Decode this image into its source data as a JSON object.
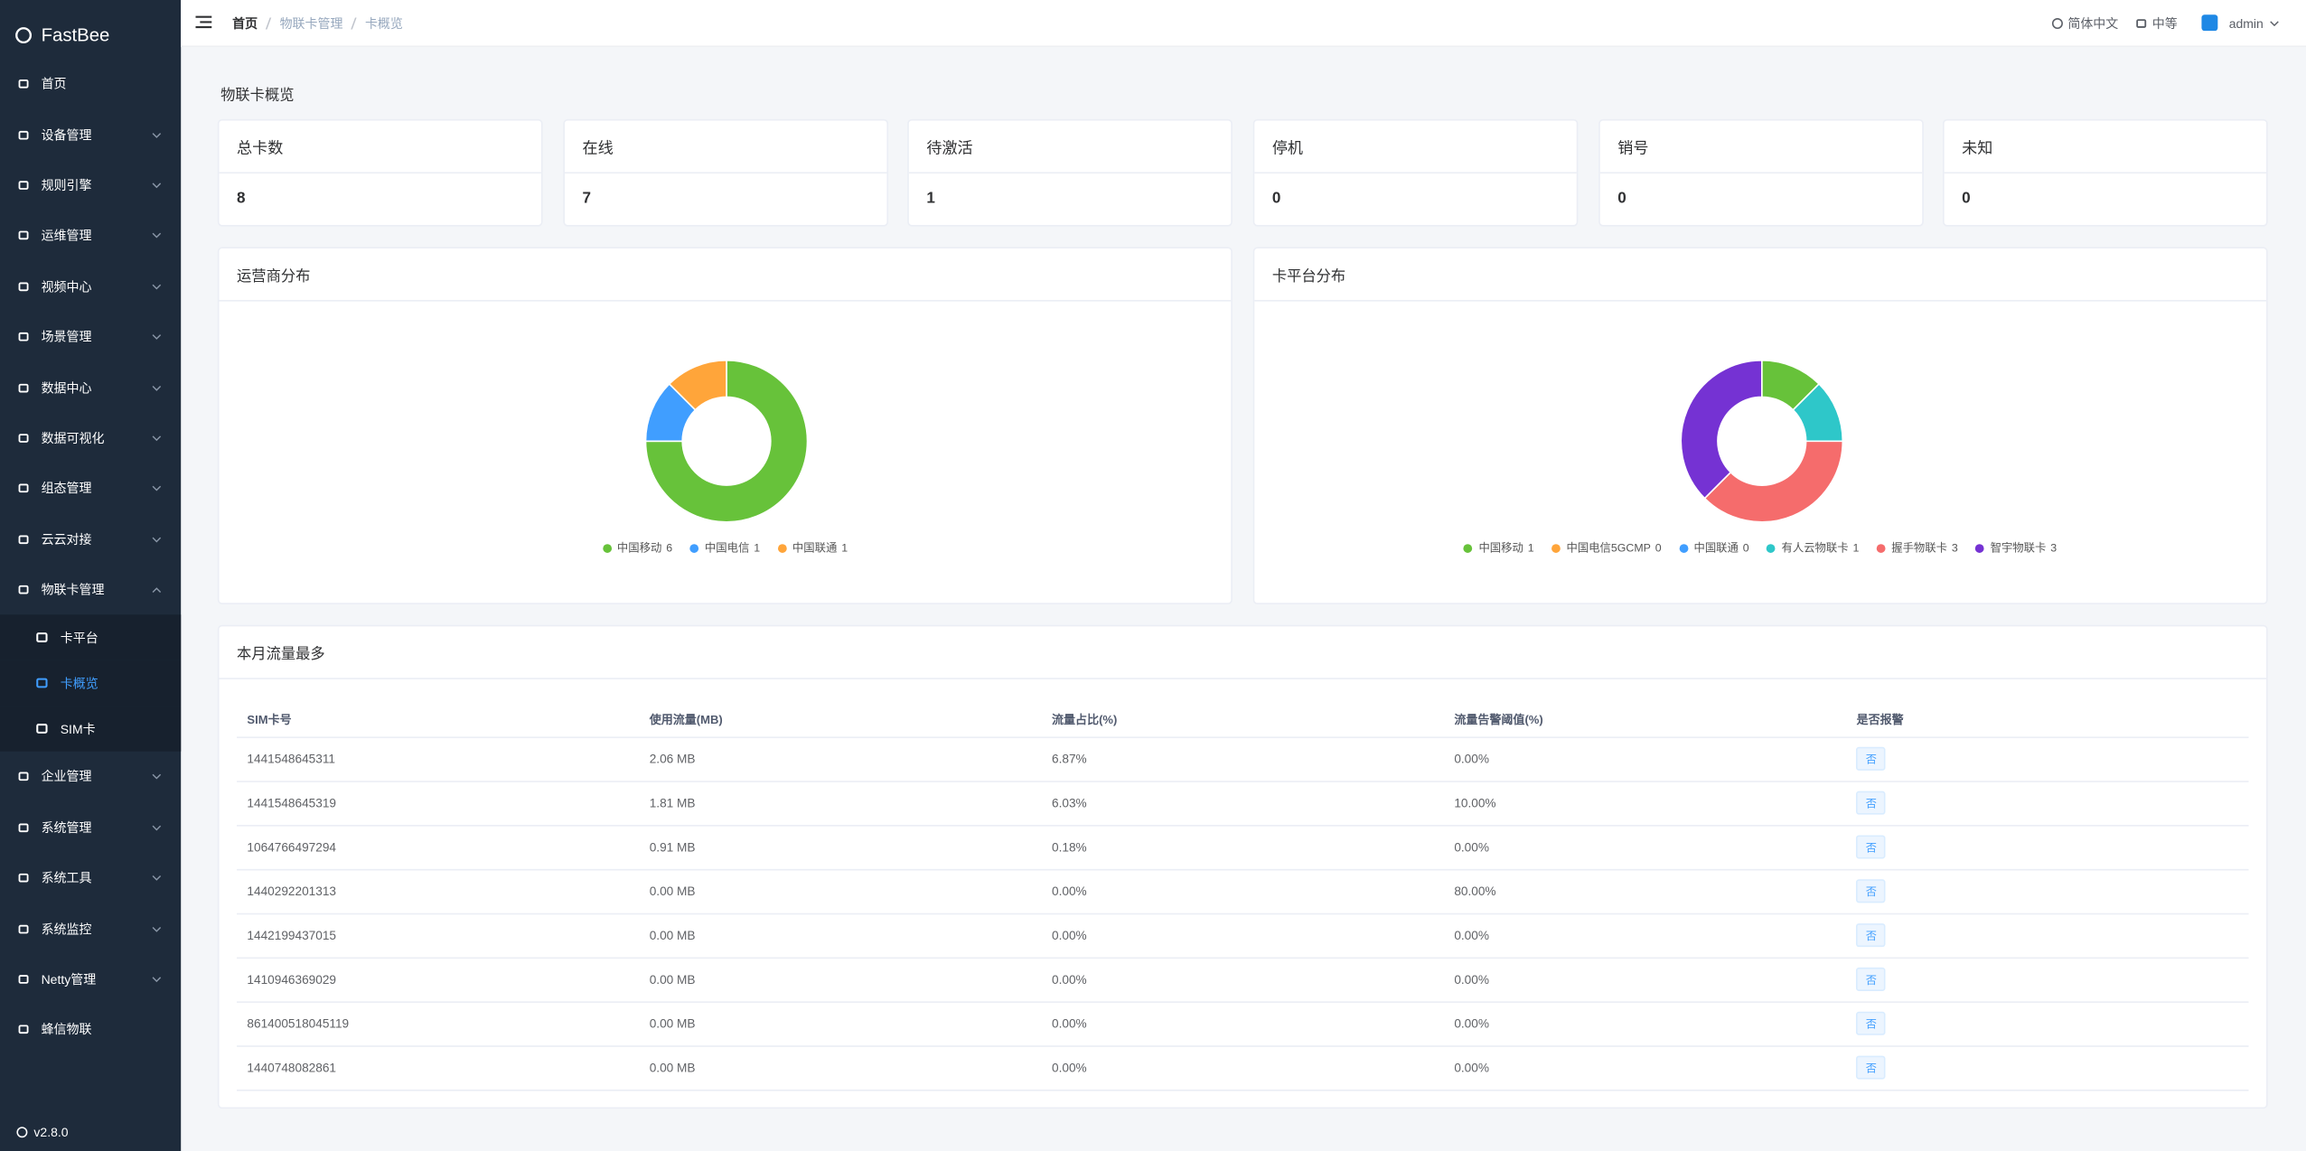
{
  "sidebar": {
    "logo": "FastBee",
    "items": [
      {
        "label": "首页"
      },
      {
        "label": "设备管理",
        "expandable": true
      },
      {
        "label": "规则引擎",
        "expandable": true
      },
      {
        "label": "运维管理",
        "expandable": true
      },
      {
        "label": "视频中心",
        "expandable": true
      },
      {
        "label": "场景管理",
        "expandable": true
      },
      {
        "label": "数据中心",
        "expandable": true
      },
      {
        "label": "数据可视化",
        "expandable": true
      },
      {
        "label": "组态管理",
        "expandable": true
      },
      {
        "label": "云云对接",
        "expandable": true
      },
      {
        "label": "物联卡管理",
        "expandable": true,
        "children": [
          {
            "label": "卡平台"
          },
          {
            "label": "卡概览",
            "active": true
          },
          {
            "label": "SIM卡"
          }
        ]
      },
      {
        "label": "企业管理",
        "expandable": true
      },
      {
        "label": "系统管理",
        "expandable": true
      },
      {
        "label": "系统工具",
        "expandable": true
      },
      {
        "label": "系统监控",
        "expandable": true
      },
      {
        "label": "Netty管理",
        "expandable": true
      },
      {
        "label": "蜂信物联"
      }
    ],
    "version": "v2.8.0"
  },
  "header": {
    "breadcrumb": [
      "首页",
      "物联卡管理",
      "卡概览"
    ],
    "language": "简体中文",
    "size": "中等",
    "user": "admin"
  },
  "overview": {
    "title": "物联卡概览",
    "cards": [
      {
        "label": "总卡数",
        "value": 8
      },
      {
        "label": "在线",
        "value": 7
      },
      {
        "label": "待激活",
        "value": 1
      },
      {
        "label": "停机",
        "value": 0
      },
      {
        "label": "销号",
        "value": 0
      },
      {
        "label": "未知",
        "value": 0
      }
    ]
  },
  "charts": [
    {
      "type": "pie",
      "title": "运营商分布",
      "series": [
        {
          "name": "中国移动",
          "value": 6,
          "color": "#67c23a"
        },
        {
          "name": "中国电信",
          "value": 1,
          "color": "#409eff"
        },
        {
          "name": "中国联通",
          "value": 1,
          "color": "#ffa53a"
        }
      ]
    },
    {
      "type": "pie",
      "title": "卡平台分布",
      "series": [
        {
          "name": "中国移动",
          "value": 1,
          "color": "#67c23a"
        },
        {
          "name": "中国电信5GCMP",
          "value": 0,
          "color": "#ffa53a"
        },
        {
          "name": "中国联通",
          "value": 0,
          "color": "#409eff"
        },
        {
          "name": "有人云物联卡",
          "value": 1,
          "color": "#2ec7c9"
        },
        {
          "name": "握手物联卡",
          "value": 3,
          "color": "#f56c6c"
        },
        {
          "name": "智宇物联卡",
          "value": 3,
          "color": "#7532d3"
        }
      ]
    }
  ],
  "table": {
    "title": "本月流量最多",
    "columns": [
      "SIM卡号",
      "使用流量(MB)",
      "流量占比(%)",
      "流量告警阈值(%)",
      "是否报警"
    ],
    "rows": [
      [
        "1441548645311",
        "2.06 MB",
        "6.87%",
        "0.00%",
        "否"
      ],
      [
        "1441548645319",
        "1.81 MB",
        "6.03%",
        "10.00%",
        "否"
      ],
      [
        "1064766497294",
        "0.91 MB",
        "0.18%",
        "0.00%",
        "否"
      ],
      [
        "1440292201313",
        "0.00 MB",
        "0.00%",
        "80.00%",
        "否"
      ],
      [
        "1442199437015",
        "0.00 MB",
        "0.00%",
        "0.00%",
        "否"
      ],
      [
        "1410946369029",
        "0.00 MB",
        "0.00%",
        "0.00%",
        "否"
      ],
      [
        "861400518045119",
        "0.00 MB",
        "0.00%",
        "0.00%",
        "否"
      ],
      [
        "1440748082861",
        "0.00 MB",
        "0.00%",
        "0.00%",
        "否"
      ]
    ]
  }
}
